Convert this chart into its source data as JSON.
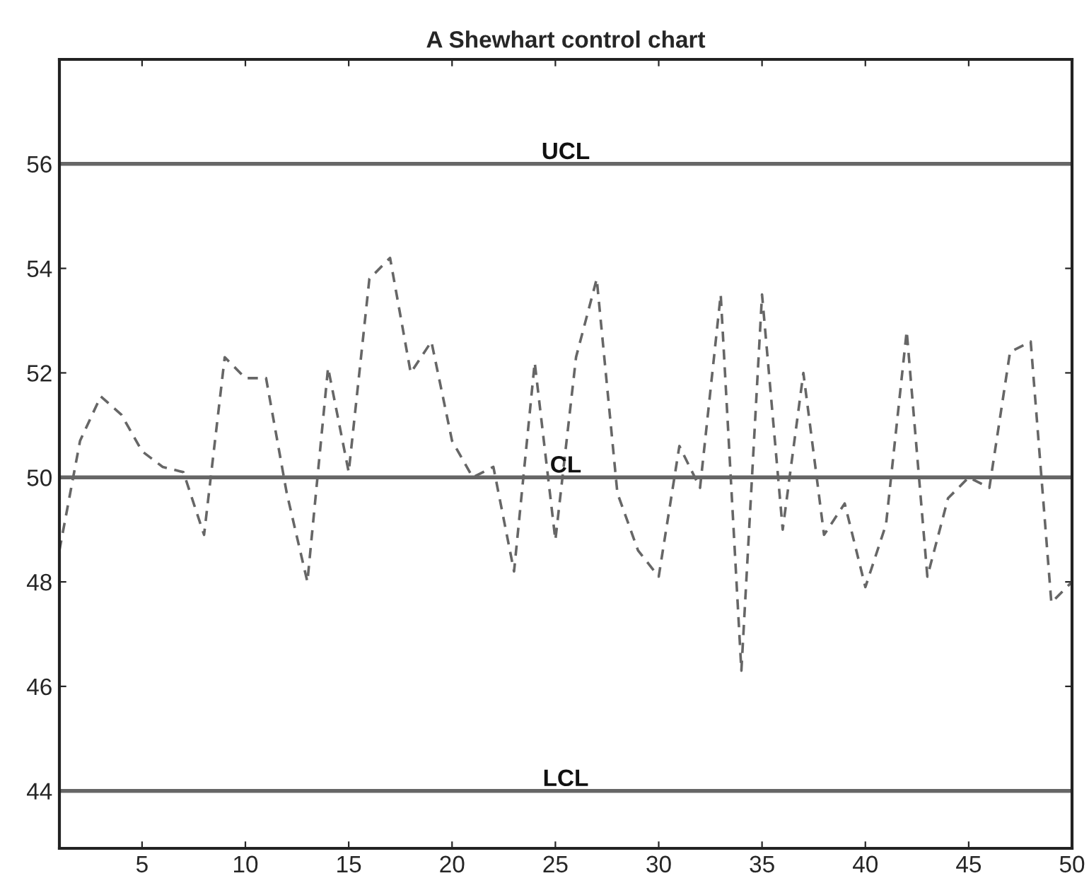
{
  "chart_data": {
    "type": "line",
    "title": "A Shewhart control chart",
    "x": [
      1,
      2,
      3,
      4,
      5,
      6,
      7,
      8,
      9,
      10,
      11,
      12,
      13,
      14,
      15,
      16,
      17,
      18,
      19,
      20,
      21,
      22,
      23,
      24,
      25,
      26,
      27,
      28,
      29,
      30,
      31,
      32,
      33,
      34,
      35,
      36,
      37,
      38,
      39,
      40,
      41,
      42,
      43,
      44,
      45,
      46,
      47,
      48,
      49,
      50
    ],
    "series": [
      {
        "color": "#666666",
        "values": [
          48.6,
          50.7,
          51.55,
          51.2,
          50.5,
          50.2,
          50.1,
          48.9,
          52.3,
          51.9,
          51.9,
          49.7,
          48.0,
          52.1,
          50.1,
          53.8,
          54.2,
          52.0,
          52.6,
          50.7,
          50.0,
          50.2,
          48.2,
          52.2,
          48.8,
          52.3,
          53.8,
          49.7,
          48.6,
          48.1,
          50.6,
          49.8,
          53.5,
          46.3,
          53.5,
          49.0,
          52.0,
          48.9,
          49.5,
          47.9,
          49.1,
          52.8,
          48.1,
          49.6,
          50.0,
          49.8,
          52.4,
          52.6,
          47.6,
          48.0
        ]
      }
    ],
    "line_style": "dashed",
    "ref_lines": [
      {
        "axis": "y",
        "value": 56,
        "label": "UCL",
        "color": "#666666"
      },
      {
        "axis": "y",
        "value": 50,
        "label": "CL",
        "color": "#666666"
      },
      {
        "axis": "y",
        "value": 44,
        "label": "LCL",
        "color": "#666666"
      }
    ],
    "xlim": [
      1,
      50
    ],
    "xticks": [
      5,
      10,
      15,
      20,
      25,
      30,
      35,
      40,
      45,
      50
    ],
    "ylim": [
      42.9,
      58.0
    ],
    "yticks": [
      44,
      46,
      48,
      50,
      52,
      54,
      56
    ],
    "grid": false,
    "legend": false
  }
}
